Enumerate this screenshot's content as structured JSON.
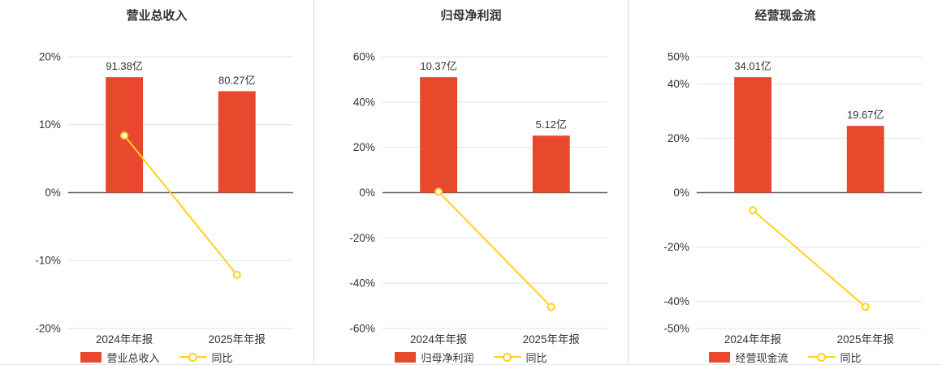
{
  "colors": {
    "bar": "#e8492d",
    "line": "#ffd119",
    "grid": "#e3e3e3",
    "zero_axis": "#5c5c5c",
    "text": "#333333",
    "title": "#333333",
    "divider": "#dcdcdc"
  },
  "chart_data": [
    {
      "type": "bar",
      "title": "营业总收入",
      "categories": [
        "2024年年报",
        "2025年年报"
      ],
      "bar_series": {
        "name": "营业总收入",
        "values": [
          91.38,
          80.27
        ],
        "labels": [
          "91.38亿",
          "80.27亿"
        ],
        "unit": "亿"
      },
      "line_series": {
        "name": "同比",
        "values_pct": [
          8.4,
          -12.1
        ]
      },
      "y_ticks": [
        20,
        10,
        0,
        -10,
        -20
      ],
      "ylim": [
        -20,
        20
      ],
      "y_tick_suffix": "%",
      "grid": true,
      "legend_position": "bottom"
    },
    {
      "type": "bar",
      "title": "归母净利润",
      "categories": [
        "2024年年报",
        "2025年年报"
      ],
      "bar_series": {
        "name": "归母净利润",
        "values": [
          10.37,
          5.12
        ],
        "labels": [
          "10.37亿",
          "5.12亿"
        ],
        "unit": "亿"
      },
      "line_series": {
        "name": "同比",
        "values_pct": [
          0.4,
          -50.5
        ]
      },
      "y_ticks": [
        60,
        40,
        20,
        0,
        -20,
        -40,
        -60
      ],
      "ylim": [
        -60,
        60
      ],
      "y_tick_suffix": "%",
      "grid": true,
      "legend_position": "bottom"
    },
    {
      "type": "bar",
      "title": "经营现金流",
      "categories": [
        "2024年年报",
        "2025年年报"
      ],
      "bar_series": {
        "name": "经营现金流",
        "values": [
          34.01,
          19.67
        ],
        "labels": [
          "34.01亿",
          "19.67亿"
        ],
        "unit": "亿"
      },
      "line_series": {
        "name": "同比",
        "values_pct": [
          -6.5,
          -42.0
        ]
      },
      "y_ticks": [
        50,
        40,
        20,
        0,
        -20,
        -40,
        -50
      ],
      "ylim": [
        -50,
        50
      ],
      "y_tick_suffix": "%",
      "grid": true,
      "legend_position": "bottom"
    }
  ]
}
